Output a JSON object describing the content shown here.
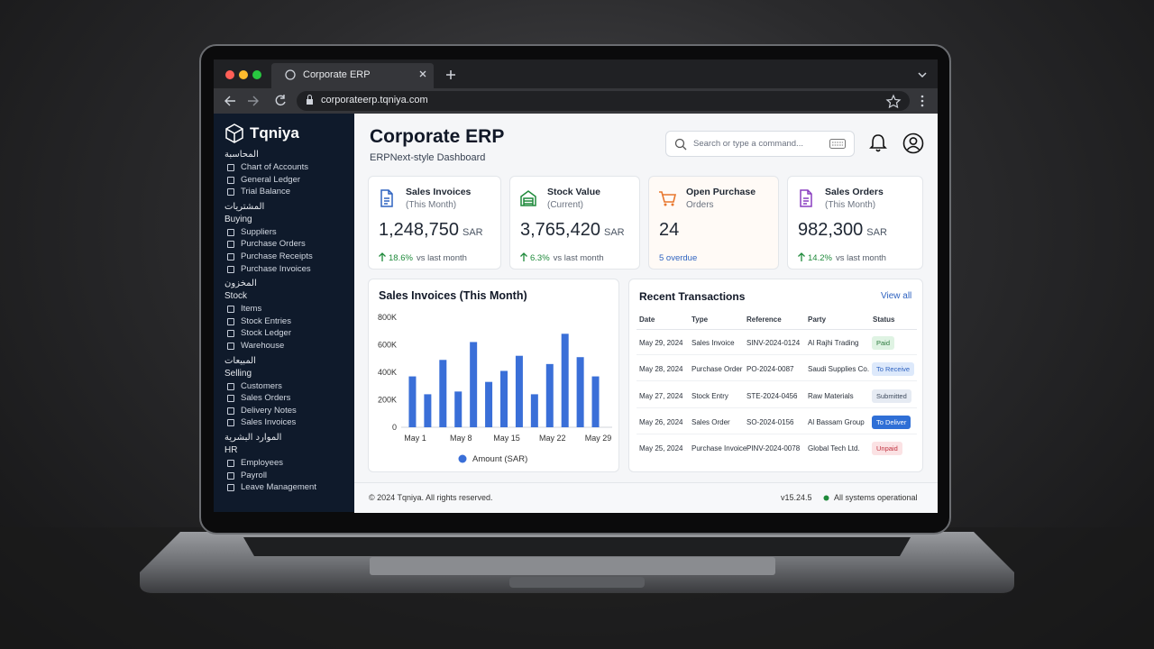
{
  "browser": {
    "tab_title": "Corporate ERP",
    "url": "corporateerp.tqniya.com"
  },
  "sidebar": {
    "brand": "Tqniya",
    "sections": [
      {
        "label_ar": "المحاسبة",
        "items": [
          "Chart of Accounts",
          "General Ledger",
          "Trial Balance"
        ]
      },
      {
        "label_ar": "المشتريات",
        "label": "Buying",
        "items": [
          "Suppliers",
          "Purchase Orders",
          "Purchase Receipts",
          "Purchase Invoices"
        ]
      },
      {
        "label_ar": "المخزون",
        "label": "Stock",
        "items": [
          "Items",
          "Stock Entries",
          "Stock Ledger",
          "Warehouse"
        ]
      },
      {
        "label_ar": "المبيعات",
        "label": "Selling",
        "items": [
          "Customers",
          "Sales Orders",
          "Delivery Notes",
          "Sales Invoices"
        ]
      },
      {
        "label_ar": "الموارد البشرية",
        "label": "HR",
        "items": [
          "Employees",
          "Payroll",
          "Leave Management"
        ]
      }
    ]
  },
  "header": {
    "title": "Corporate ERP",
    "subtitle": "ERPNext-style Dashboard",
    "search_placeholder": "Search or type a command..."
  },
  "kpis": [
    {
      "title": "Sales Invoices",
      "subtitle": "(This Month)",
      "value": "1,248,750",
      "unit": "SAR",
      "change": "18.6%",
      "change_note": "vs last month"
    },
    {
      "title": "Stock Value",
      "subtitle": "(Current)",
      "value": "3,765,420",
      "unit": "SAR",
      "change": "6.3%",
      "change_note": "vs last month"
    },
    {
      "title": "Open Purchase",
      "subtitle": "Orders",
      "value": "24",
      "change_note": "5 overdue"
    },
    {
      "title": "Sales Orders",
      "subtitle": "(This Month)",
      "value": "982,300",
      "unit": "SAR",
      "change": "14.2%",
      "change_note": "vs last month"
    }
  ],
  "chart_data": {
    "type": "bar",
    "title": "Sales Invoices (This Month)",
    "categories": [
      "May 1",
      null,
      null,
      "May 8",
      null,
      null,
      "May 15",
      null,
      null,
      "May 22",
      null,
      null,
      "May 29"
    ],
    "series": [
      {
        "name": "Amount (SAR)",
        "color": "#3a6fd8",
        "values": [
          370000,
          240000,
          490000,
          260000,
          620000,
          330000,
          410000,
          520000,
          240000,
          460000,
          680000,
          510000,
          370000
        ]
      }
    ],
    "ylim": [
      0,
      800000
    ],
    "yticks": [
      0,
      {
        "value": 200000,
        "label": "200K"
      },
      {
        "value": 400000,
        "label": "400K"
      },
      {
        "value": 600000,
        "label": "600K"
      },
      {
        "value": 800000,
        "label": "800K"
      }
    ],
    "grid": false,
    "legend": "bottom"
  },
  "transactions": {
    "title": "Recent Transactions",
    "view_all": "View all",
    "columns": [
      "Date",
      "Type",
      "Reference",
      "Party",
      "Status"
    ],
    "rows": [
      [
        "May 29, 2024",
        "Sales Invoice",
        "SINV-2024-0124",
        "Al Rajhi Trading",
        "Paid"
      ],
      [
        "May 28, 2024",
        "Purchase Order",
        "PO-2024-0087",
        "Saudi Supplies Co.",
        "To Receive"
      ],
      [
        "May 27, 2024",
        "Stock Entry",
        "STE-2024-0456",
        "Raw Materials",
        "Submitted"
      ],
      [
        "May 26, 2024",
        "Sales Order",
        "SO-2024-0156",
        "Al Bassam Group",
        "To Deliver"
      ],
      [
        "May 25, 2024",
        "Purchase Invoice",
        "PINV-2024-0078",
        "Global Tech Ltd.",
        "Unpaid"
      ]
    ]
  },
  "footer": {
    "copyright": "© 2024 Tqniya. All rights reserved.",
    "version": "v15.24.5",
    "status": "All systems operational"
  }
}
